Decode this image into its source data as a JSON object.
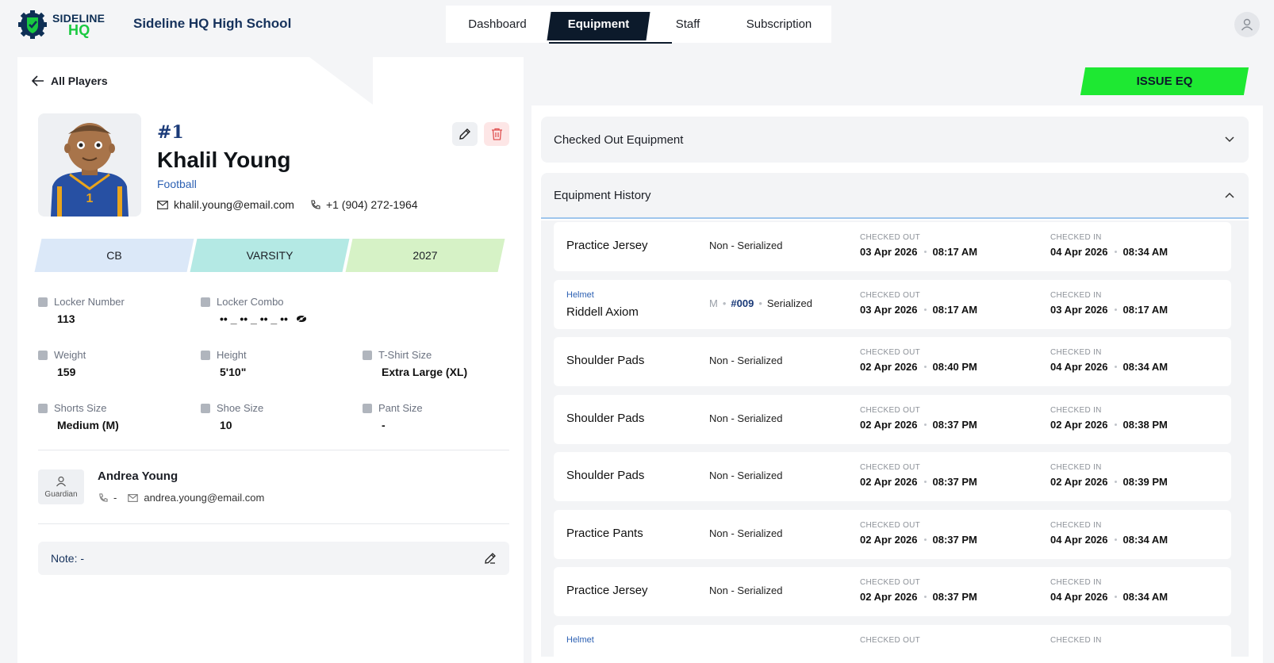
{
  "brand": {
    "logo_line1": "SIDELINE",
    "logo_line2": "HQ",
    "school": "Sideline HQ High School"
  },
  "nav": {
    "tabs": [
      "Dashboard",
      "Equipment",
      "Staff",
      "Subscription"
    ],
    "active": "Equipment"
  },
  "back_link": "All Players",
  "issue_button": "ISSUE EQ",
  "player": {
    "number": "#1",
    "name": "Khalil Young",
    "sport": "Football",
    "email": "khalil.young@email.com",
    "phone": "+1 (904) 272-1964",
    "position": "CB",
    "level": "VARSITY",
    "year": "2027",
    "attributes": {
      "locker_number": {
        "label": "Locker Number",
        "value": "113"
      },
      "locker_combo": {
        "label": "Locker Combo",
        "value": "•• _ •• _ •• _ ••"
      },
      "weight": {
        "label": "Weight",
        "value": "159"
      },
      "height": {
        "label": "Height",
        "value": "5'10\""
      },
      "tshirt": {
        "label": "T-Shirt Size",
        "value": "Extra Large (XL)"
      },
      "shorts": {
        "label": "Shorts Size",
        "value": "Medium (M)"
      },
      "shoe": {
        "label": "Shoe Size",
        "value": "10"
      },
      "pant": {
        "label": "Pant Size",
        "value": "-"
      }
    }
  },
  "guardian": {
    "role": "Guardian",
    "name": "Andrea Young",
    "phone": "-",
    "email": "andrea.young@email.com"
  },
  "note": "Note: -",
  "sections": {
    "checked_out": "Checked Out Equipment",
    "history": "Equipment History"
  },
  "history_labels": {
    "checked_out": "CHECKED OUT",
    "checked_in": "CHECKED IN"
  },
  "history": [
    {
      "category": "",
      "name": "Practice Jersey",
      "size": "",
      "serial": "",
      "type": "Non - Serialized",
      "out_date": "03 Apr 2026",
      "out_time": "08:17 AM",
      "in_date": "04 Apr 2026",
      "in_time": "08:34 AM"
    },
    {
      "category": "Helmet",
      "name": "Riddell Axiom",
      "size": "M",
      "serial": "#009",
      "type": "Serialized",
      "out_date": "03 Apr 2026",
      "out_time": "08:17 AM",
      "in_date": "03 Apr 2026",
      "in_time": "08:17 AM"
    },
    {
      "category": "",
      "name": "Shoulder Pads",
      "size": "",
      "serial": "",
      "type": "Non - Serialized",
      "out_date": "02 Apr 2026",
      "out_time": "08:40 PM",
      "in_date": "04 Apr 2026",
      "in_time": "08:34 AM"
    },
    {
      "category": "",
      "name": "Shoulder Pads",
      "size": "",
      "serial": "",
      "type": "Non - Serialized",
      "out_date": "02 Apr 2026",
      "out_time": "08:37 PM",
      "in_date": "02 Apr 2026",
      "in_time": "08:38 PM"
    },
    {
      "category": "",
      "name": "Shoulder Pads",
      "size": "",
      "serial": "",
      "type": "Non - Serialized",
      "out_date": "02 Apr 2026",
      "out_time": "08:37 PM",
      "in_date": "02 Apr 2026",
      "in_time": "08:39 PM"
    },
    {
      "category": "",
      "name": "Practice Pants",
      "size": "",
      "serial": "",
      "type": "Non - Serialized",
      "out_date": "02 Apr 2026",
      "out_time": "08:37 PM",
      "in_date": "04 Apr 2026",
      "in_time": "08:34 AM"
    },
    {
      "category": "",
      "name": "Practice Jersey",
      "size": "",
      "serial": "",
      "type": "Non - Serialized",
      "out_date": "02 Apr 2026",
      "out_time": "08:37 PM",
      "in_date": "04 Apr 2026",
      "in_time": "08:34 AM"
    },
    {
      "category": "Helmet",
      "name": "",
      "size": "",
      "serial": "",
      "type": "",
      "out_date": "",
      "out_time": "",
      "in_date": "",
      "in_time": ""
    }
  ]
}
